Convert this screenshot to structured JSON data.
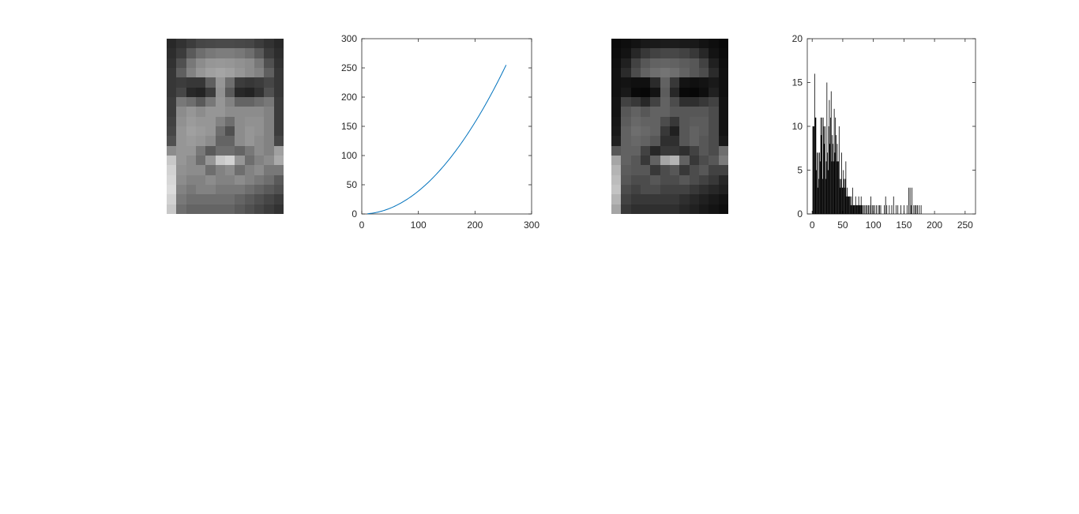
{
  "colors": {
    "curve": "#0072BD",
    "histogram": "#000000",
    "axis": "#262626"
  },
  "images": {
    "original": {
      "label": "original face image (grayscale pixelated)",
      "rows": 18,
      "cols": 12,
      "brightness_scale": 1.0
    },
    "transformed": {
      "label": "transformed face image (darkened)",
      "rows": 18,
      "cols": 12,
      "brightness_scale": 0.45
    }
  },
  "chart_data": [
    {
      "type": "line",
      "series": [
        {
          "values_description": "power-law curve y = x^2/255",
          "x_start": 10,
          "x_end": 255
        }
      ],
      "xlim": [
        0,
        300
      ],
      "ylim": [
        0,
        300
      ],
      "xticks": [
        "0",
        "100",
        "200",
        "300"
      ],
      "yticks": [
        "0",
        "50",
        "100",
        "150",
        "200",
        "250",
        "300"
      ],
      "grid": false
    },
    {
      "type": "bar",
      "xlim": [
        -8,
        267
      ],
      "ylim": [
        0,
        20
      ],
      "xticks": [
        "0",
        "50",
        "100",
        "150",
        "200",
        "250"
      ],
      "yticks": [
        "0",
        "5",
        "10",
        "15",
        "20"
      ],
      "grid": false,
      "bins": [
        [
          1,
          10
        ],
        [
          2,
          10
        ],
        [
          3,
          10
        ],
        [
          4,
          16
        ],
        [
          5,
          11
        ],
        [
          6,
          11
        ],
        [
          7,
          5
        ],
        [
          8,
          7
        ],
        [
          9,
          3
        ],
        [
          10,
          7
        ],
        [
          11,
          4
        ],
        [
          12,
          7
        ],
        [
          13,
          6
        ],
        [
          14,
          11
        ],
        [
          15,
          9
        ],
        [
          16,
          11
        ],
        [
          17,
          4
        ],
        [
          18,
          11
        ],
        [
          19,
          10
        ],
        [
          20,
          8
        ],
        [
          21,
          10
        ],
        [
          22,
          4
        ],
        [
          23,
          6
        ],
        [
          24,
          15
        ],
        [
          25,
          7
        ],
        [
          26,
          5
        ],
        [
          27,
          10
        ],
        [
          28,
          13
        ],
        [
          29,
          8
        ],
        [
          30,
          11
        ],
        [
          31,
          14
        ],
        [
          32,
          6
        ],
        [
          33,
          9
        ],
        [
          34,
          8
        ],
        [
          35,
          6
        ],
        [
          36,
          12
        ],
        [
          37,
          7
        ],
        [
          38,
          11
        ],
        [
          39,
          9
        ],
        [
          40,
          6
        ],
        [
          41,
          8
        ],
        [
          42,
          6
        ],
        [
          43,
          6
        ],
        [
          44,
          10
        ],
        [
          45,
          4
        ],
        [
          46,
          3
        ],
        [
          47,
          4
        ],
        [
          48,
          7
        ],
        [
          49,
          3
        ],
        [
          50,
          3
        ],
        [
          51,
          5
        ],
        [
          52,
          4
        ],
        [
          53,
          3
        ],
        [
          54,
          4
        ],
        [
          55,
          6
        ],
        [
          56,
          2
        ],
        [
          57,
          3
        ],
        [
          58,
          2
        ],
        [
          59,
          2
        ],
        [
          60,
          2
        ],
        [
          61,
          2
        ],
        [
          62,
          2
        ],
        [
          63,
          1
        ],
        [
          64,
          2
        ],
        [
          65,
          1
        ],
        [
          66,
          3
        ],
        [
          67,
          1
        ],
        [
          68,
          1
        ],
        [
          69,
          1
        ],
        [
          70,
          1
        ],
        [
          71,
          2
        ],
        [
          72,
          1
        ],
        [
          73,
          1
        ],
        [
          74,
          1
        ],
        [
          75,
          1
        ],
        [
          76,
          2
        ],
        [
          77,
          1
        ],
        [
          78,
          1
        ],
        [
          79,
          1
        ],
        [
          80,
          2
        ],
        [
          81,
          1
        ],
        [
          82,
          1
        ],
        [
          84,
          1
        ],
        [
          86,
          1
        ],
        [
          88,
          1
        ],
        [
          90,
          1
        ],
        [
          92,
          1
        ],
        [
          94,
          1
        ],
        [
          96,
          2
        ],
        [
          98,
          1
        ],
        [
          100,
          1
        ],
        [
          102,
          1
        ],
        [
          105,
          1
        ],
        [
          108,
          1
        ],
        [
          110,
          1
        ],
        [
          112,
          1
        ],
        [
          118,
          1
        ],
        [
          120,
          2
        ],
        [
          122,
          1
        ],
        [
          126,
          1
        ],
        [
          130,
          1
        ],
        [
          133,
          2
        ],
        [
          137,
          1
        ],
        [
          140,
          1
        ],
        [
          145,
          1
        ],
        [
          150,
          1
        ],
        [
          155,
          1
        ],
        [
          158,
          3
        ],
        [
          160,
          3
        ],
        [
          162,
          1
        ],
        [
          163,
          3
        ],
        [
          166,
          1
        ],
        [
          168,
          1
        ],
        [
          170,
          1
        ],
        [
          172,
          1
        ],
        [
          175,
          1
        ],
        [
          178,
          1
        ]
      ]
    }
  ]
}
